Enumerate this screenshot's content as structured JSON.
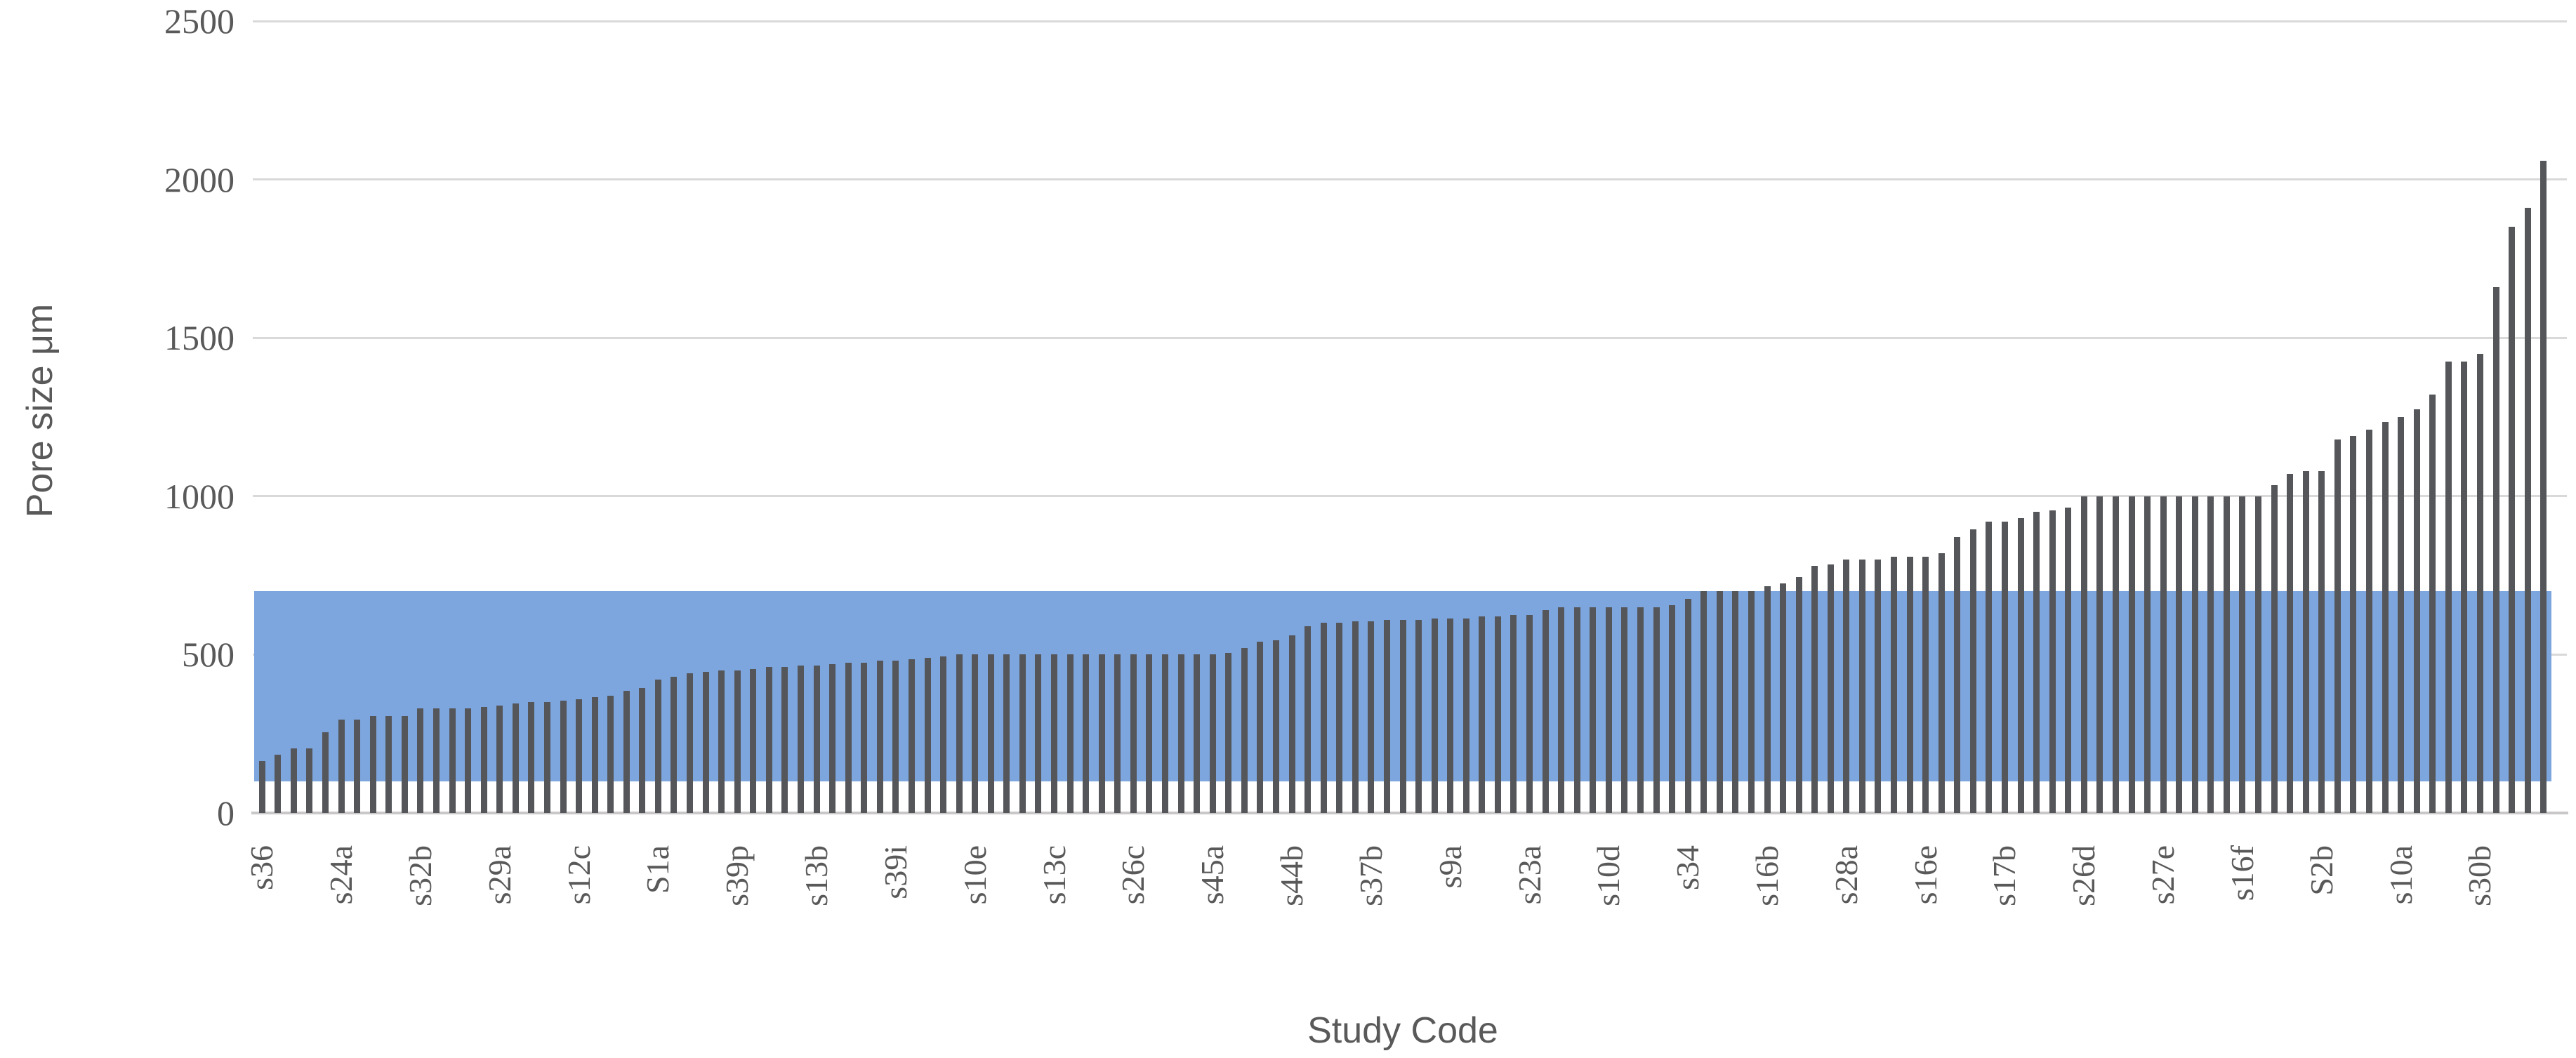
{
  "chart_data": {
    "type": "bar",
    "title": "",
    "ylabel": "Pore size μm",
    "xlabel": "Study Code",
    "ylim": [
      0,
      2500
    ],
    "yticks": [
      0,
      500,
      1000,
      1500,
      2000,
      2500
    ],
    "grid": "horizontal",
    "legend_position": "none",
    "background_color": "#FFFFFF",
    "bar_color": "#55565A",
    "gridline_color": "#D9D9D9",
    "axis_line_color": "#C9C7C7",
    "text_color": "#595959",
    "highlight_band": {
      "ymin": 100,
      "ymax": 700,
      "color": "#7DA6DE",
      "description": "solid blue band overlaid across the full plot width from 100 to 700 μm"
    },
    "n_bars": 145,
    "x_tick_interval": 5,
    "x_tick_labels": [
      "s36",
      "s24a",
      "s32b",
      "s29a",
      "s12c",
      "S1a",
      "s39p",
      "s13b",
      "s39i",
      "s10e",
      "s13c",
      "s26c",
      "s45a",
      "s44b",
      "s37b",
      "s9a",
      "s23a",
      "s10d",
      "s34",
      "s16b",
      "s28a",
      "s16e",
      "s17b",
      "s26d",
      "s27e",
      "s16f",
      "S2b",
      "s10a",
      "s30b"
    ],
    "values": [
      165,
      185,
      205,
      205,
      255,
      295,
      295,
      305,
      305,
      305,
      330,
      330,
      330,
      330,
      335,
      340,
      345,
      350,
      350,
      355,
      360,
      365,
      370,
      385,
      395,
      420,
      430,
      440,
      445,
      450,
      450,
      455,
      460,
      460,
      465,
      465,
      470,
      475,
      475,
      480,
      480,
      485,
      490,
      495,
      500,
      500,
      500,
      500,
      500,
      500,
      500,
      500,
      500,
      500,
      500,
      500,
      500,
      500,
      500,
      500,
      500,
      505,
      520,
      540,
      545,
      560,
      590,
      600,
      600,
      605,
      605,
      610,
      610,
      610,
      615,
      615,
      615,
      620,
      620,
      625,
      625,
      640,
      650,
      650,
      650,
      650,
      650,
      650,
      650,
      655,
      675,
      700,
      700,
      700,
      700,
      715,
      725,
      745,
      780,
      785,
      800,
      800,
      800,
      810,
      810,
      810,
      820,
      870,
      895,
      920,
      920,
      930,
      950,
      955,
      965,
      1000,
      1000,
      1000,
      1000,
      1000,
      1000,
      1000,
      1000,
      1000,
      1000,
      1000,
      1000,
      1035,
      1070,
      1080,
      1080,
      1180,
      1190,
      1210,
      1235,
      1250,
      1275,
      1320,
      1425,
      1425,
      1450,
      1660,
      1850,
      1910,
      2060
    ]
  }
}
